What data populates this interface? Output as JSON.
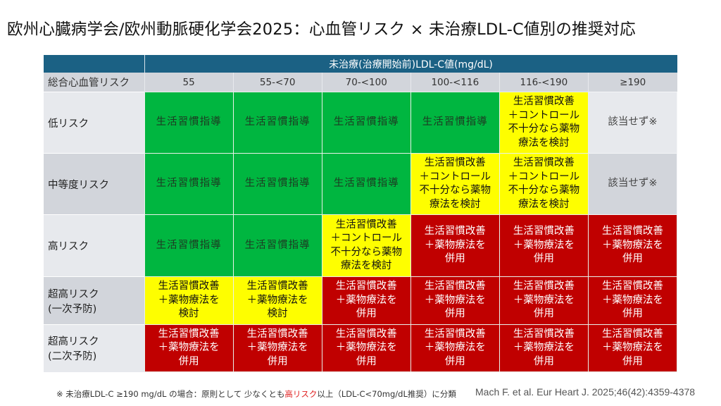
{
  "title": "欧州心臓病学会/欧州動脈硬化学会2025：心血管リスク × 未治療LDL-C値別の推奨対応",
  "table": {
    "group_header": "未治療(治療開始前)LDL-C値(mg/dL)",
    "row_header_label": "総合心血管リスク",
    "columns": [
      "55",
      "55-<70",
      "70-<100",
      "100-<116",
      "116-<190",
      "≥190"
    ],
    "colors": {
      "green": "#00b640",
      "yellow": "#fefe00",
      "red": "#c00000",
      "header_blue": "#1b6184",
      "gray": "#d2d5db"
    },
    "rows": [
      {
        "label": [
          "低リスク"
        ],
        "cells": [
          {
            "level": "green",
            "lines": [
              "生活習慣指導"
            ]
          },
          {
            "level": "green",
            "lines": [
              "生活習慣指導"
            ]
          },
          {
            "level": "green",
            "lines": [
              "生活習慣指導"
            ]
          },
          {
            "level": "green",
            "lines": [
              "生活習慣指導"
            ]
          },
          {
            "level": "yellow",
            "lines": [
              "生活習慣改善",
              "＋コントロール",
              "不十分なら薬物",
              "療法を検討"
            ]
          },
          {
            "level": "gray-light",
            "lines": [
              "該当せず※"
            ]
          }
        ]
      },
      {
        "label": [
          "中等度リスク"
        ],
        "cells": [
          {
            "level": "green",
            "lines": [
              "生活習慣指導"
            ]
          },
          {
            "level": "green",
            "lines": [
              "生活習慣指導"
            ]
          },
          {
            "level": "green",
            "lines": [
              "生活習慣指導"
            ]
          },
          {
            "level": "yellow",
            "lines": [
              "生活習慣改善",
              "＋コントロール",
              "不十分なら薬物",
              "療法を検討"
            ]
          },
          {
            "level": "yellow",
            "lines": [
              "生活習慣改善",
              "＋コントロール",
              "不十分なら薬物",
              "療法を検討"
            ]
          },
          {
            "level": "gray-dark",
            "lines": [
              "該当せず※"
            ]
          }
        ]
      },
      {
        "label": [
          "高リスク"
        ],
        "cells": [
          {
            "level": "green",
            "lines": [
              "生活習慣指導"
            ]
          },
          {
            "level": "green",
            "lines": [
              "生活習慣指導"
            ]
          },
          {
            "level": "yellow",
            "lines": [
              "生活習慣改善",
              "＋コントロール",
              "不十分なら薬物",
              "療法を検討"
            ]
          },
          {
            "level": "red",
            "lines": [
              "生活習慣改善",
              "＋薬物療法を",
              "併用"
            ]
          },
          {
            "level": "red",
            "lines": [
              "生活習慣改善",
              "＋薬物療法を",
              "併用"
            ]
          },
          {
            "level": "red",
            "lines": [
              "生活習慣改善",
              "＋薬物療法を",
              "併用"
            ]
          }
        ]
      },
      {
        "label": [
          "超高リスク",
          "(一次予防)"
        ],
        "cells": [
          {
            "level": "yellow",
            "lines": [
              "生活習慣改善",
              "＋薬物療法を",
              "検討"
            ]
          },
          {
            "level": "yellow",
            "lines": [
              "生活習慣改善",
              "＋薬物療法を",
              "検討"
            ]
          },
          {
            "level": "red",
            "lines": [
              "生活習慣改善",
              "＋薬物療法を",
              "併用"
            ]
          },
          {
            "level": "red",
            "lines": [
              "生活習慣改善",
              "＋薬物療法を",
              "併用"
            ]
          },
          {
            "level": "red",
            "lines": [
              "生活習慣改善",
              "＋薬物療法を",
              "併用"
            ]
          },
          {
            "level": "red",
            "lines": [
              "生活習慣改善",
              "＋薬物療法を",
              "併用"
            ]
          }
        ]
      },
      {
        "label": [
          "超高リスク",
          "(二次予防)"
        ],
        "cells": [
          {
            "level": "red",
            "lines": [
              "生活習慣改善",
              "＋薬物療法を",
              "併用"
            ]
          },
          {
            "level": "red",
            "lines": [
              "生活習慣改善",
              "＋薬物療法を",
              "併用"
            ]
          },
          {
            "level": "red",
            "lines": [
              "生活習慣改善",
              "＋薬物療法を",
              "併用"
            ]
          },
          {
            "level": "red",
            "lines": [
              "生活習慣改善",
              "＋薬物療法を",
              "併用"
            ]
          },
          {
            "level": "red",
            "lines": [
              "生活習慣改善",
              "＋薬物療法を",
              "併用"
            ]
          },
          {
            "level": "red",
            "lines": [
              "生活習慣改善",
              "＋薬物療法を",
              "併用"
            ]
          }
        ]
      }
    ]
  },
  "footnote": {
    "prefix": "※ 未治療LDL-C ≥190 mg/dL の場合：原則として 少なくとも",
    "highlight": "高リスク",
    "suffix": "以上（LDL-C<70mg/dL推奨）に分類"
  },
  "citation": "Mach F. et al. Eur Heart J. 2025;46(42):4359-4378"
}
